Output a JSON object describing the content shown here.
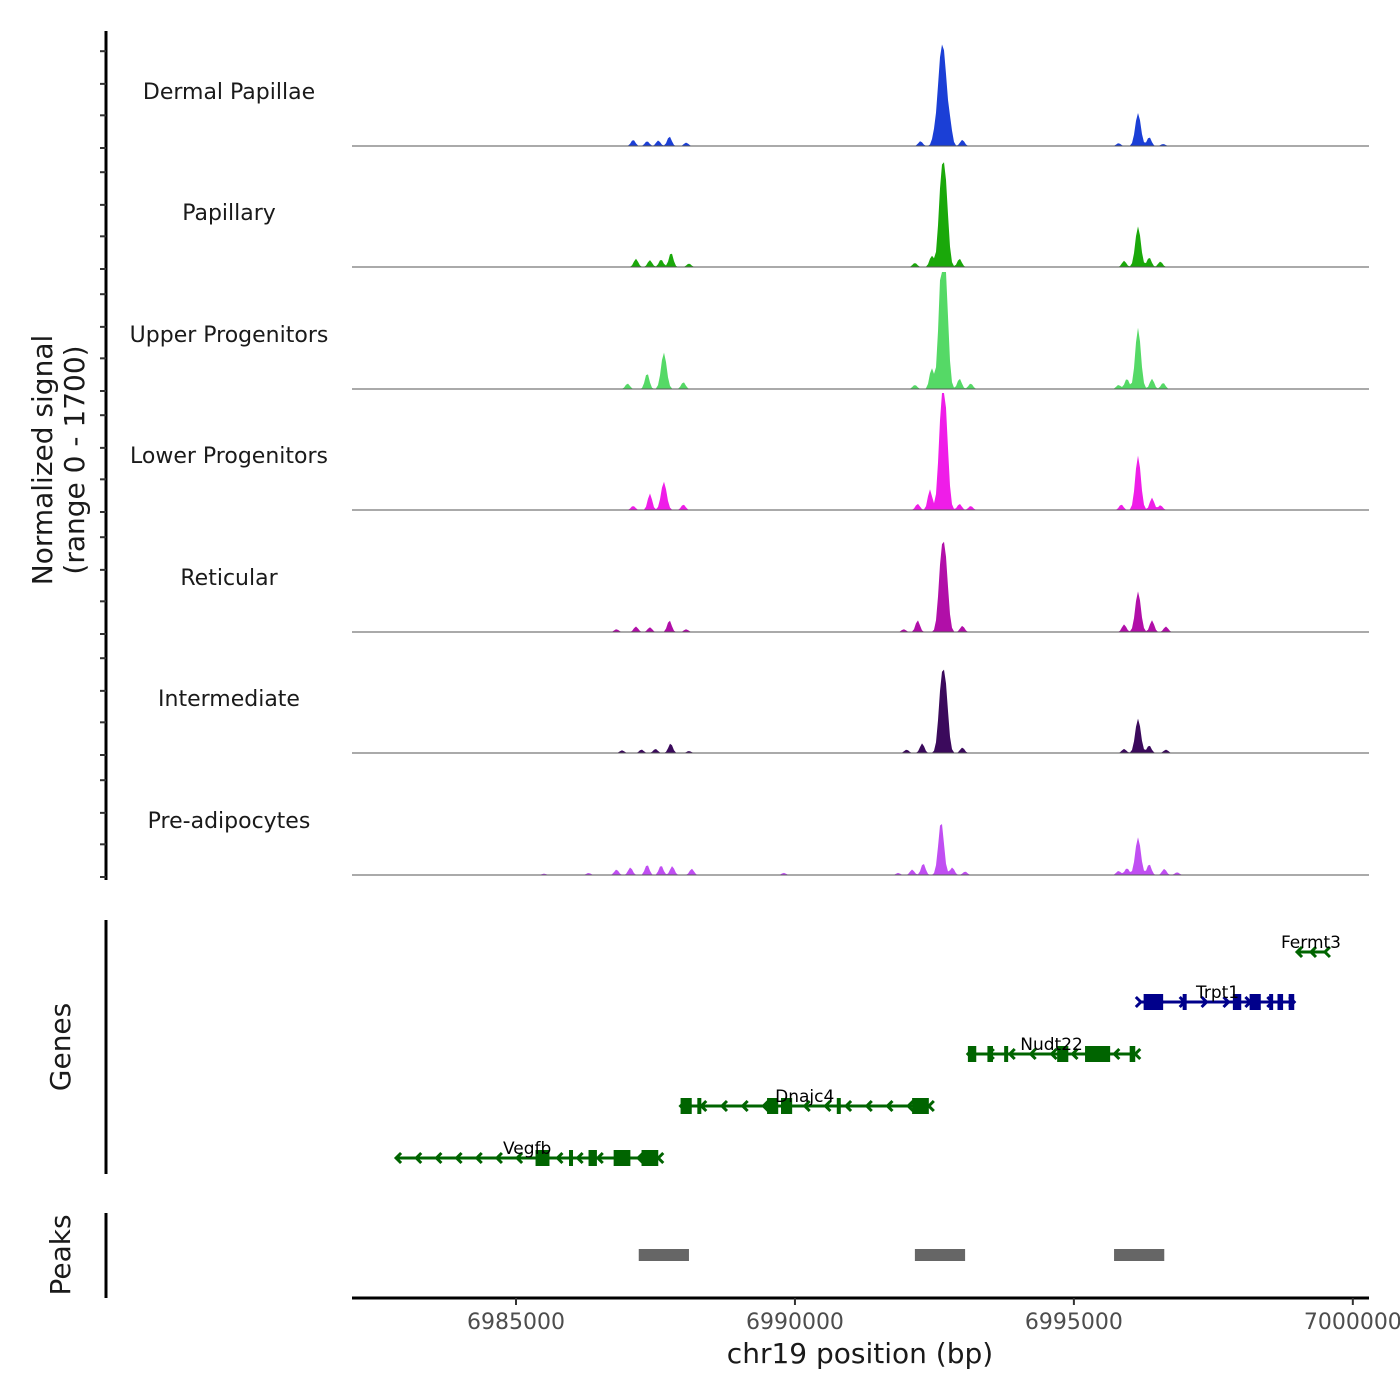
{
  "chart_data": {
    "type": "area",
    "title": "",
    "xlabel": "chr19 position (bp)",
    "ylabel": "Normalized signal\n(range 0 - 1700)",
    "ylabel_lines": [
      "Normalized signal",
      "(range 0 - 1700)"
    ],
    "ylim": [
      0,
      1700
    ],
    "xlim": [
      6982060,
      7000290
    ],
    "x_ticks": [
      6985000,
      6990000,
      6995000,
      7000000
    ],
    "x_tick_labels": [
      "6985000",
      "6990000",
      "6995000",
      "7000000"
    ],
    "grid": false,
    "tracks": [
      {
        "name": "Dermal Papillae",
        "color": "#1b3fd6",
        "peaks": [
          [
            6987100,
            90
          ],
          [
            6987350,
            70
          ],
          [
            6987550,
            80
          ],
          [
            6987750,
            140
          ],
          [
            6988050,
            50
          ],
          [
            6992250,
            70
          ],
          [
            6992500,
            160
          ],
          [
            6992600,
            1000
          ],
          [
            6992680,
            1050
          ],
          [
            6992780,
            300
          ],
          [
            6993000,
            90
          ],
          [
            6995800,
            40
          ],
          [
            6996150,
            480
          ],
          [
            6996350,
            130
          ],
          [
            6996600,
            30
          ]
        ]
      },
      {
        "name": "Papillary",
        "color": "#1aa80a",
        "peaks": [
          [
            6987150,
            120
          ],
          [
            6987400,
            100
          ],
          [
            6987600,
            110
          ],
          [
            6987780,
            210
          ],
          [
            6988100,
            50
          ],
          [
            6992150,
            60
          ],
          [
            6992450,
            160
          ],
          [
            6992620,
            1090
          ],
          [
            6992700,
            1050
          ],
          [
            6992950,
            120
          ],
          [
            6995900,
            90
          ],
          [
            6996150,
            590
          ],
          [
            6996350,
            140
          ],
          [
            6996550,
            80
          ]
        ]
      },
      {
        "name": "Upper Progenitors",
        "color": "#55d966",
        "peaks": [
          [
            6987000,
            80
          ],
          [
            6987350,
            230
          ],
          [
            6987650,
            530
          ],
          [
            6988000,
            100
          ],
          [
            6992150,
            60
          ],
          [
            6992450,
            300
          ],
          [
            6992620,
            1510
          ],
          [
            6992700,
            1450
          ],
          [
            6992950,
            150
          ],
          [
            6993150,
            80
          ],
          [
            6995800,
            60
          ],
          [
            6995950,
            150
          ],
          [
            6996150,
            890
          ],
          [
            6996400,
            150
          ],
          [
            6996600,
            90
          ]
        ]
      },
      {
        "name": "Lower Progenitors",
        "color": "#ef1de8",
        "peaks": [
          [
            6987100,
            60
          ],
          [
            6987400,
            240
          ],
          [
            6987650,
            410
          ],
          [
            6988000,
            80
          ],
          [
            6992200,
            90
          ],
          [
            6992420,
            300
          ],
          [
            6992620,
            1240
          ],
          [
            6992700,
            1240
          ],
          [
            6992950,
            90
          ],
          [
            6993150,
            60
          ],
          [
            6995850,
            80
          ],
          [
            6996150,
            790
          ],
          [
            6996400,
            180
          ],
          [
            6996550,
            70
          ]
        ]
      },
      {
        "name": "Reticular",
        "color": "#b10fa8",
        "peaks": [
          [
            6986800,
            40
          ],
          [
            6987150,
            80
          ],
          [
            6987400,
            70
          ],
          [
            6987750,
            170
          ],
          [
            6988050,
            40
          ],
          [
            6991950,
            40
          ],
          [
            6992200,
            170
          ],
          [
            6992620,
            930
          ],
          [
            6992700,
            910
          ],
          [
            6993000,
            90
          ],
          [
            6995900,
            110
          ],
          [
            6996150,
            590
          ],
          [
            6996400,
            170
          ],
          [
            6996650,
            80
          ]
        ]
      },
      {
        "name": "Intermediate",
        "color": "#3b0a5c",
        "peaks": [
          [
            6986900,
            40
          ],
          [
            6987250,
            50
          ],
          [
            6987500,
            60
          ],
          [
            6987770,
            140
          ],
          [
            6988100,
            30
          ],
          [
            6992000,
            50
          ],
          [
            6992280,
            140
          ],
          [
            6992620,
            860
          ],
          [
            6992700,
            840
          ],
          [
            6993000,
            80
          ],
          [
            6995900,
            60
          ],
          [
            6996150,
            500
          ],
          [
            6996350,
            110
          ],
          [
            6996650,
            50
          ]
        ]
      },
      {
        "name": "Pre-adipocytes",
        "color": "#c04ef2",
        "peaks": [
          [
            6985500,
            20
          ],
          [
            6986300,
            30
          ],
          [
            6986800,
            80
          ],
          [
            6987050,
            110
          ],
          [
            6987350,
            150
          ],
          [
            6987600,
            140
          ],
          [
            6987800,
            130
          ],
          [
            6988150,
            90
          ],
          [
            6989800,
            30
          ],
          [
            6991850,
            30
          ],
          [
            6992100,
            80
          ],
          [
            6992300,
            170
          ],
          [
            6992620,
            780
          ],
          [
            6992820,
            110
          ],
          [
            6993050,
            50
          ],
          [
            6995800,
            60
          ],
          [
            6995950,
            100
          ],
          [
            6996150,
            550
          ],
          [
            6996350,
            160
          ],
          [
            6996620,
            90
          ],
          [
            6996850,
            40
          ]
        ]
      }
    ],
    "genes": [
      {
        "name": "Fermt3",
        "color": "#006400",
        "strand": "-",
        "row": 0,
        "start": 6999000,
        "end": 6999500,
        "exons": []
      },
      {
        "name": "Trpt1",
        "color": "#00008b",
        "strand": "+",
        "row": 1,
        "start": 6996200,
        "end": 6998950,
        "exons": [
          [
            6996250,
            6996600
          ],
          [
            6996950,
            6997000
          ],
          [
            6997850,
            6998000
          ],
          [
            6998150,
            6998350
          ],
          [
            6998500,
            6998530
          ],
          [
            6998650,
            6998750
          ],
          [
            6998850,
            6998950
          ]
        ]
      },
      {
        "name": "Nudt22",
        "color": "#006400",
        "strand": "-",
        "row": 2,
        "start": 6993100,
        "end": 6996100,
        "exons": [
          [
            6993100,
            6993250
          ],
          [
            6993450,
            6993550
          ],
          [
            6993750,
            6993800
          ],
          [
            6994700,
            6994900
          ],
          [
            6995200,
            6995650
          ],
          [
            6996000,
            6996100
          ]
        ]
      },
      {
        "name": "Dnajc4",
        "color": "#006400",
        "strand": "-",
        "row": 3,
        "start": 6987950,
        "end": 6992400,
        "exons": [
          [
            6987950,
            6988150
          ],
          [
            6988250,
            6988300
          ],
          [
            6989500,
            6989700
          ],
          [
            6989750,
            6989950
          ],
          [
            6990750,
            6990820
          ],
          [
            6992100,
            6992400
          ]
        ]
      },
      {
        "name": "Vegfb",
        "color": "#006400",
        "strand": "-",
        "row": 4,
        "start": 6982850,
        "end": 6987550,
        "exons": [
          [
            6985350,
            6985600
          ],
          [
            6985950,
            6986000
          ],
          [
            6986300,
            6986450
          ],
          [
            6986750,
            6987050
          ],
          [
            6987250,
            6987550
          ]
        ]
      }
    ],
    "peaks_track": {
      "label": "Peaks",
      "color": "#666666",
      "regions": [
        [
          6987200,
          6988100
        ],
        [
          6992150,
          6993050
        ],
        [
          6995720,
          6996620
        ]
      ]
    },
    "genes_track_label": "Genes"
  }
}
